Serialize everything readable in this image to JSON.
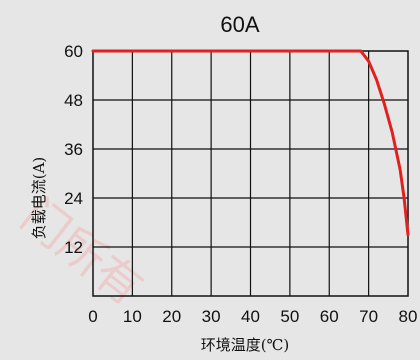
{
  "chart_data": {
    "type": "line",
    "title": "60A",
    "xlabel": "环境温度(℃)",
    "ylabel": "负载电流(A)",
    "xlim": [
      0,
      80
    ],
    "ylim": [
      0,
      60
    ],
    "x_ticks": [
      0,
      10,
      20,
      30,
      40,
      50,
      60,
      70,
      80
    ],
    "y_ticks": [
      12,
      24,
      36,
      48,
      60
    ],
    "grid": true,
    "series": [
      {
        "color": "#e0211f",
        "points": [
          [
            0,
            60
          ],
          [
            68,
            60
          ],
          [
            70,
            57.5
          ],
          [
            72,
            53
          ],
          [
            74,
            47
          ],
          [
            76,
            40
          ],
          [
            78,
            31
          ],
          [
            79,
            24
          ],
          [
            80,
            15
          ]
        ]
      }
    ],
    "watermark": "门所有"
  },
  "colors": {
    "background": "#e6e6e6",
    "line": "#e0211f",
    "grid": "#111111"
  }
}
